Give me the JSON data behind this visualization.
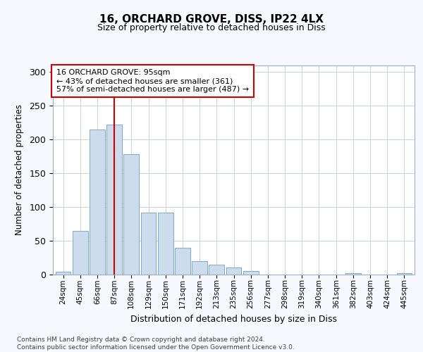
{
  "title": "16, ORCHARD GROVE, DISS, IP22 4LX",
  "subtitle": "Size of property relative to detached houses in Diss",
  "xlabel": "Distribution of detached houses by size in Diss",
  "ylabel": "Number of detached properties",
  "categories": [
    "24sqm",
    "45sqm",
    "66sqm",
    "87sqm",
    "108sqm",
    "129sqm",
    "150sqm",
    "171sqm",
    "192sqm",
    "213sqm",
    "235sqm",
    "256sqm",
    "277sqm",
    "298sqm",
    "319sqm",
    "340sqm",
    "361sqm",
    "382sqm",
    "403sqm",
    "424sqm",
    "445sqm"
  ],
  "values": [
    4,
    65,
    215,
    222,
    178,
    92,
    92,
    40,
    20,
    15,
    10,
    5,
    0,
    0,
    0,
    0,
    0,
    2,
    0,
    0,
    2
  ],
  "bar_color": "#ccdcec",
  "bar_edge_color": "#7aaac8",
  "vline_color": "#cc0000",
  "vline_x": 3,
  "annotation_line1": "16 ORCHARD GROVE: 95sqm",
  "annotation_line2": "← 43% of detached houses are smaller (361)",
  "annotation_line3": "57% of semi-detached houses are larger (487) →",
  "ylim_max": 310,
  "yticks": [
    0,
    50,
    100,
    150,
    200,
    250,
    300
  ],
  "footer": "Contains HM Land Registry data © Crown copyright and database right 2024.\nContains public sector information licensed under the Open Government Licence v3.0.",
  "bg_color": "#f8f8ff",
  "plot_bg_color": "#ffffff",
  "grid_color": "#c8d4e0",
  "ann_box_edge": "#cc0000",
  "ann_box_face": "#ffffff"
}
